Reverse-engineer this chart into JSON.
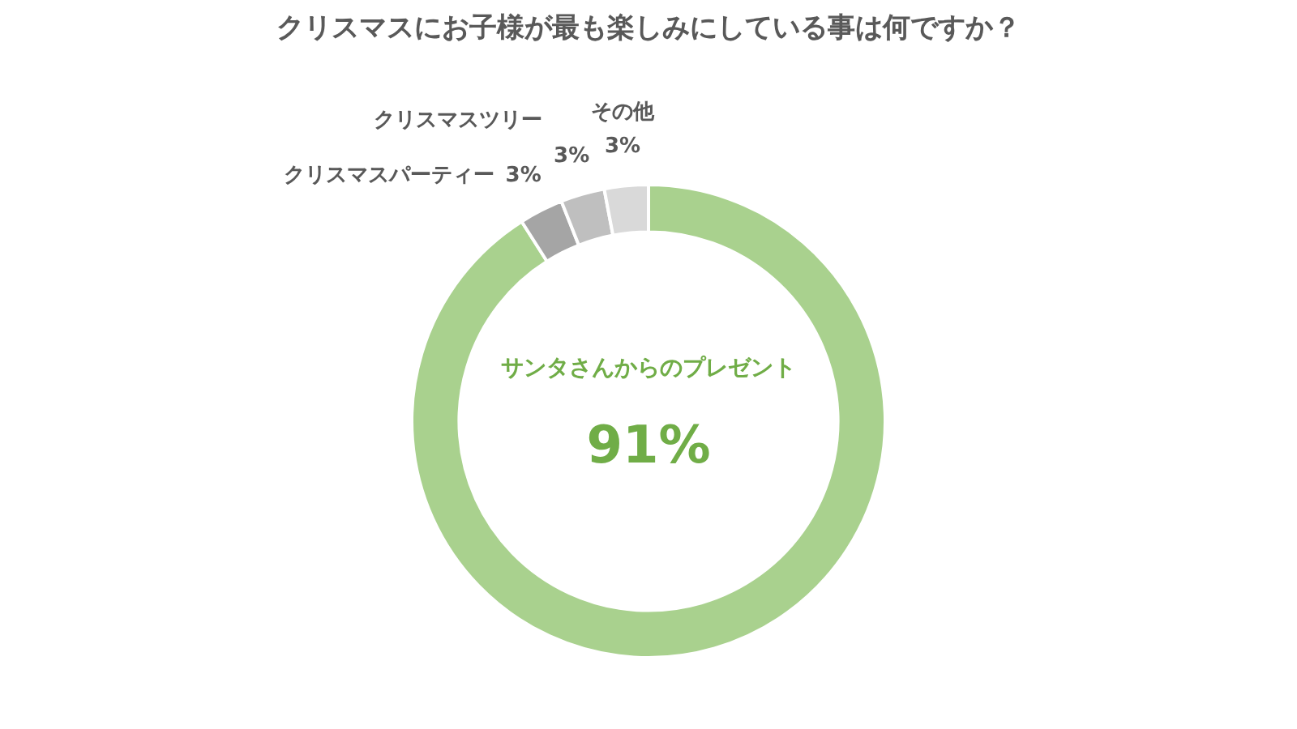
{
  "chart_data": {
    "type": "donut",
    "title": "クリスマスにお子様が最も楽しみにしている事は何ですか？",
    "categories": [
      "サンタさんからのプレゼント",
      "クリスマスパーティー",
      "クリスマスツリー",
      "その他"
    ],
    "values": [
      91,
      3,
      3,
      3
    ],
    "colors": [
      "#a9d18e",
      "#a5a5a5",
      "#bfbfbf",
      "#d9d9d9"
    ],
    "value_labels": [
      "91%",
      "3%",
      "3%",
      "3%"
    ],
    "legend": false
  }
}
